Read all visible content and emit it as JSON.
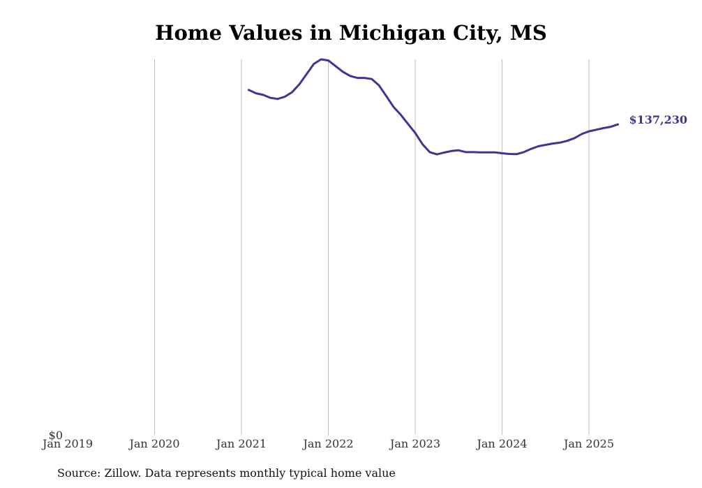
{
  "chart_data": {
    "type": "line",
    "title": "Home Values in Michigan City, MS",
    "xlabel": "",
    "ylabel": "",
    "x_tick_labels": [
      "Jan 2019",
      "Jan 2020",
      "Jan 2021",
      "Jan 2022",
      "Jan 2023",
      "Jan 2024",
      "Jan 2025"
    ],
    "y_tick_labels": [
      "$0"
    ],
    "ylim": [
      0,
      166000
    ],
    "xlim": [
      "2019-01",
      "2025-06"
    ],
    "grid": "vertical",
    "line_color": "#3f3594",
    "end_label": "$137,230",
    "series": [
      {
        "x": [
          "2021-02",
          "2021-03",
          "2021-04",
          "2021-05",
          "2021-06",
          "2021-07",
          "2021-08",
          "2021-09",
          "2021-10",
          "2021-11",
          "2021-12",
          "2022-01",
          "2022-02",
          "2022-03",
          "2022-04",
          "2022-05",
          "2022-06",
          "2022-07",
          "2022-08",
          "2022-09",
          "2022-10",
          "2022-11",
          "2022-12",
          "2023-01",
          "2023-02",
          "2023-03",
          "2023-04",
          "2023-05",
          "2023-06",
          "2023-07",
          "2023-08",
          "2023-09",
          "2023-10",
          "2023-11",
          "2023-12",
          "2024-01",
          "2024-02",
          "2024-03",
          "2024-04",
          "2024-05",
          "2024-06",
          "2024-07",
          "2024-08",
          "2024-09",
          "2024-10",
          "2024-11",
          "2024-12",
          "2025-01",
          "2025-02",
          "2025-03",
          "2025-04",
          "2025-05"
        ],
        "values": [
          152500,
          151000,
          150300,
          149000,
          148500,
          149500,
          151500,
          155000,
          159500,
          164000,
          166000,
          165500,
          163000,
          160500,
          158700,
          157800,
          157800,
          157300,
          154500,
          149800,
          145000,
          141500,
          137500,
          133500,
          128500,
          125000,
          124000,
          124800,
          125500,
          125800,
          125000,
          125000,
          124900,
          124900,
          124900,
          124500,
          124200,
          124100,
          125000,
          126400,
          127600,
          128200,
          128800,
          129200,
          130000,
          131200,
          133000,
          134200,
          134900,
          135600,
          136200,
          137230
        ]
      }
    ]
  },
  "footer": {
    "source": "Source: Zillow. Data represents monthly typical home value"
  }
}
